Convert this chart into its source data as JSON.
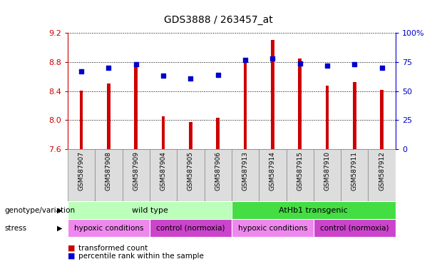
{
  "title": "GDS3888 / 263457_at",
  "samples": [
    "GSM587907",
    "GSM587908",
    "GSM587909",
    "GSM587904",
    "GSM587905",
    "GSM587906",
    "GSM587913",
    "GSM587914",
    "GSM587915",
    "GSM587910",
    "GSM587911",
    "GSM587912"
  ],
  "bar_values": [
    8.41,
    8.5,
    8.8,
    8.05,
    7.98,
    8.03,
    8.8,
    9.1,
    8.85,
    8.48,
    8.52,
    8.42
  ],
  "percentile_values": [
    67,
    70,
    73,
    63,
    61,
    64,
    77,
    78,
    74,
    72,
    73,
    70
  ],
  "ymin": 7.6,
  "ymax": 9.2,
  "yticks": [
    7.6,
    8.0,
    8.4,
    8.8,
    9.2
  ],
  "right_yticks": [
    0,
    25,
    50,
    75,
    100
  ],
  "right_ytick_labels": [
    "0",
    "25",
    "50",
    "75",
    "100%"
  ],
  "bar_color": "#cc0000",
  "percentile_color": "#0000cc",
  "grid_color": "#000000",
  "genotype_groups": [
    {
      "label": "wild type",
      "start": 0,
      "end": 6,
      "color": "#bbffbb"
    },
    {
      "label": "AtHb1 transgenic",
      "start": 6,
      "end": 12,
      "color": "#44dd44"
    }
  ],
  "stress_groups": [
    {
      "label": "hypoxic conditions",
      "start": 0,
      "end": 3,
      "color": "#ee88ee"
    },
    {
      "label": "control (normoxia)",
      "start": 3,
      "end": 6,
      "color": "#cc44cc"
    },
    {
      "label": "hypoxic conditions",
      "start": 6,
      "end": 9,
      "color": "#ee88ee"
    },
    {
      "label": "control (normoxia)",
      "start": 9,
      "end": 12,
      "color": "#cc44cc"
    }
  ],
  "legend_transformed": "transformed count",
  "legend_percentile": "percentile rank within the sample",
  "genotype_label": "genotype/variation",
  "stress_label": "stress",
  "tick_label_color_left": "#cc0000",
  "tick_label_color_right": "#0000cc",
  "cell_bg": "#dddddd",
  "cell_border": "#888888"
}
